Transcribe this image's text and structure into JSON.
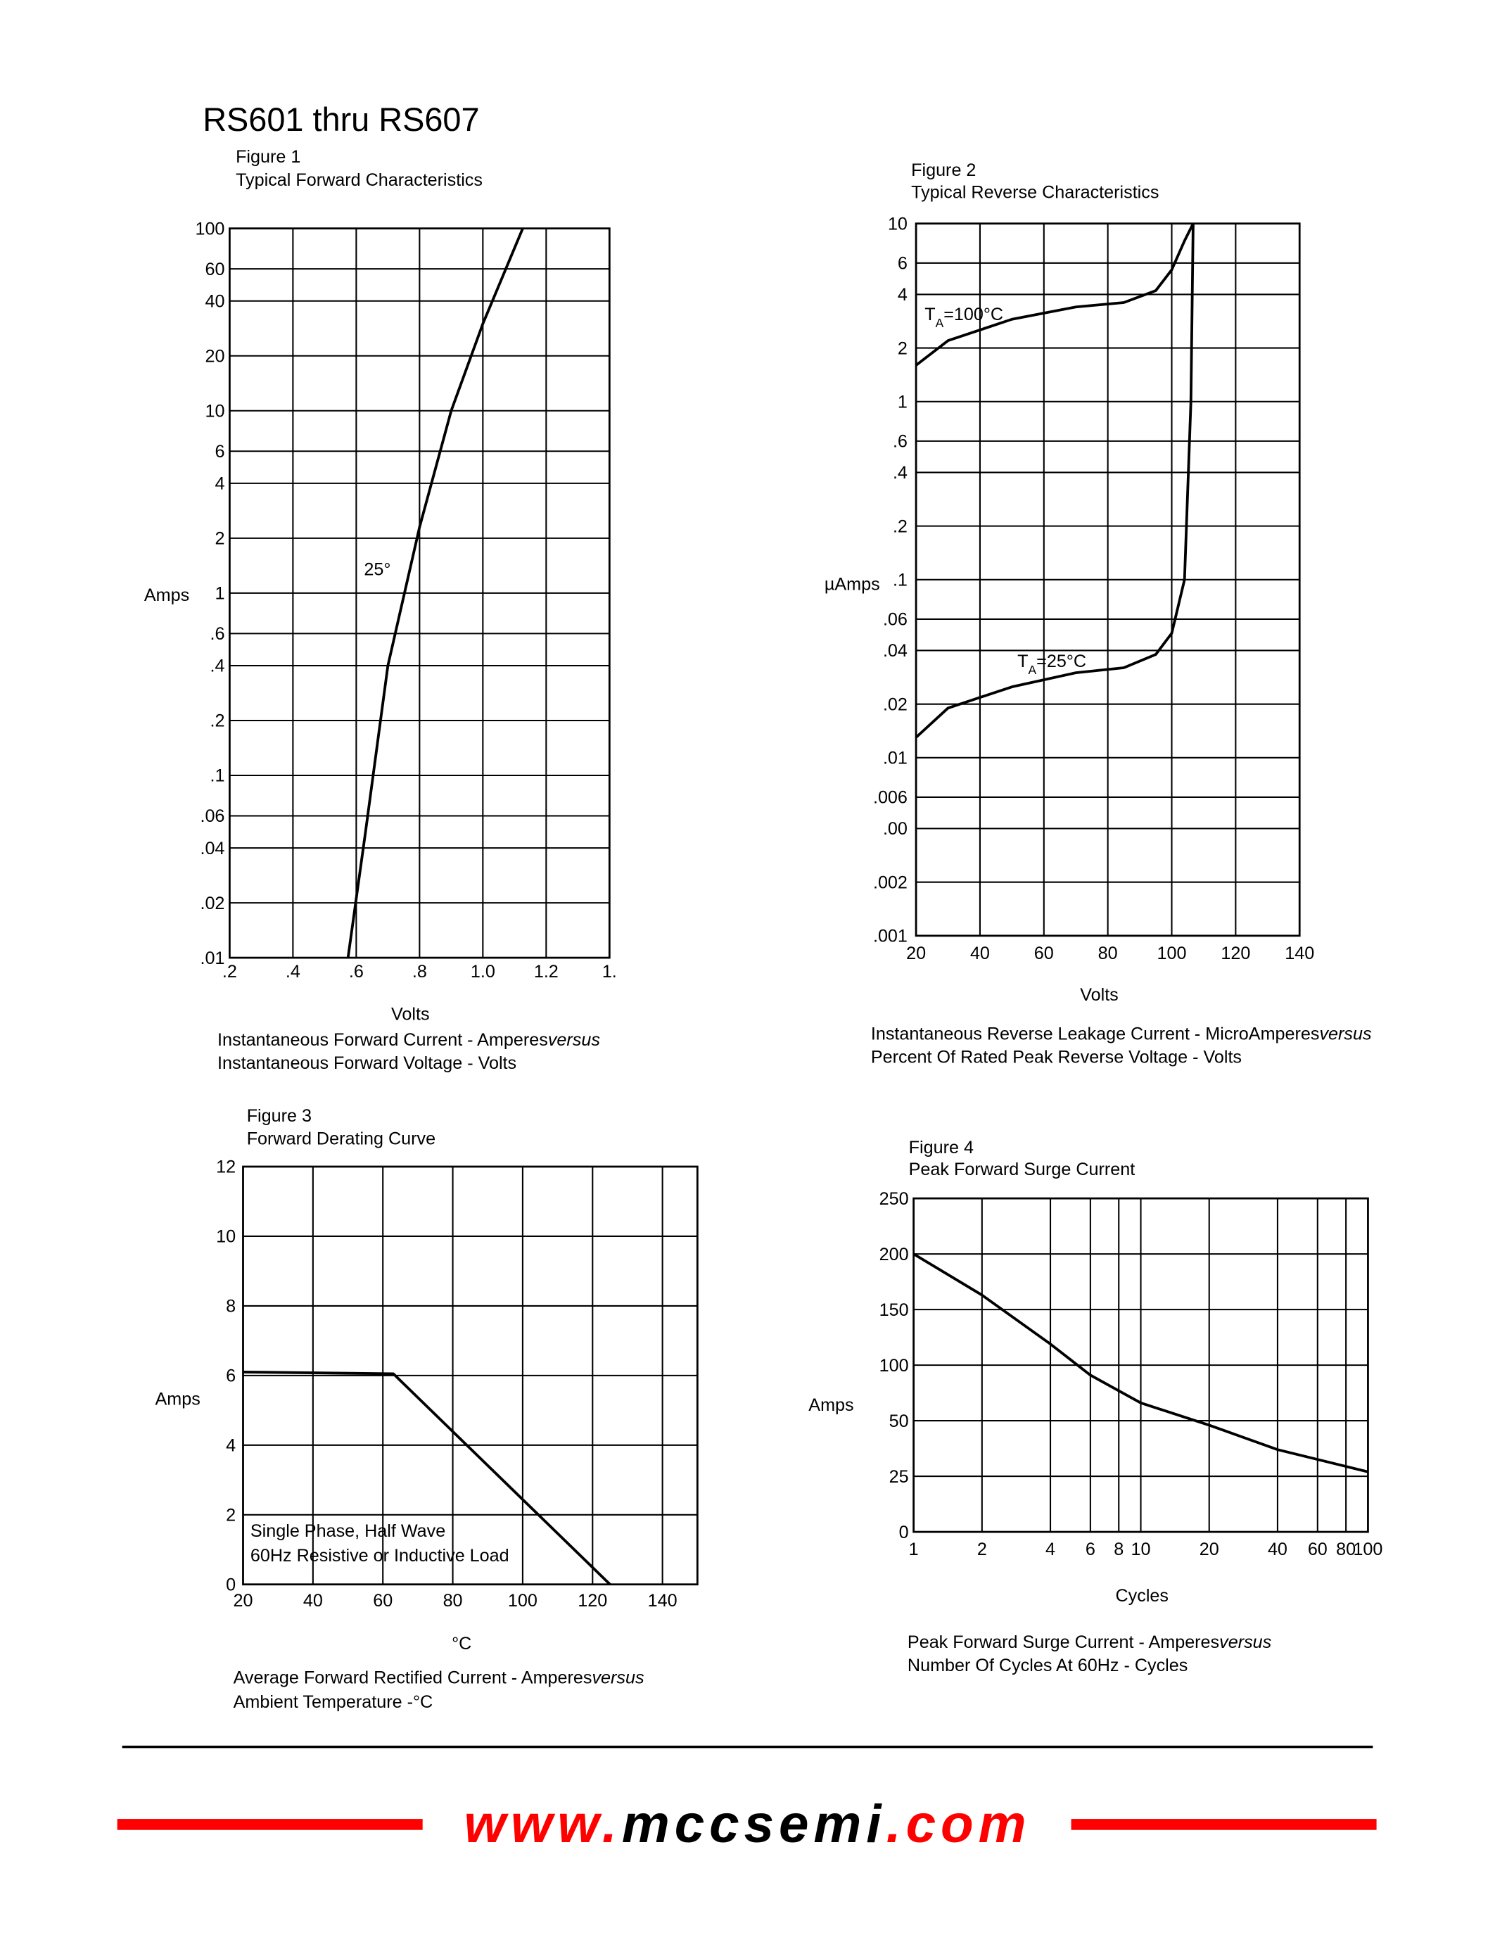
{
  "header": {
    "title": "RS601 thru RS607"
  },
  "chart_data": [
    {
      "type": "line",
      "figure": "Figure 1",
      "title": "Typical Forward Characteristics",
      "xlabel": "Volts",
      "ylabel": "Amps",
      "caption": [
        [
          "Instantaneous Forward Current - Amperes",
          "versus"
        ],
        [
          "Instantaneous Forward Voltage - Volts"
        ]
      ],
      "xlim": [
        0.2,
        1.4
      ],
      "ylim": [
        0.01,
        100
      ],
      "yscale": "log",
      "grid": true,
      "xticks": [
        {
          "value": 0.2,
          "label": ".2"
        },
        {
          "value": 0.4,
          "label": ".4"
        },
        {
          "value": 0.6,
          "label": ".6"
        },
        {
          "value": 0.8,
          "label": ".8"
        },
        {
          "value": 1,
          "label": "1.0"
        },
        1.2,
        {
          "value": 1.4,
          "label": "1."
        }
      ],
      "yticks": [
        100,
        60,
        40,
        20,
        10,
        6,
        4,
        2,
        1,
        {
          "value": 0.6,
          "label": ".6"
        },
        {
          "value": 0.4,
          "label": ".4"
        },
        {
          "value": 0.2,
          "label": ".2"
        },
        {
          "value": 0.1,
          "label": ".1"
        },
        {
          "value": 0.06,
          "label": ".06"
        },
        {
          "value": 0.04,
          "label": ".04"
        },
        {
          "value": 0.02,
          "label": ".02"
        },
        {
          "value": 0.01,
          "label": ".01"
        }
      ],
      "annotations": [
        [
          "25°"
        ]
      ],
      "series": [
        {
          "color": "#000000",
          "x": [
            0.574,
            0.63,
            0.7,
            0.8,
            0.9,
            1.0,
            1.126
          ],
          "values": [
            0.01,
            0.05,
            0.4,
            2.3,
            10,
            30,
            100
          ]
        }
      ]
    },
    {
      "type": "line",
      "figure": "Figure 2",
      "title": "Typical Reverse Characteristics",
      "xlabel": "Volts",
      "ylabel": "µAmps",
      "caption": [
        [
          "Instantaneous Reverse Leakage Current - MicroAmperes",
          "versus"
        ],
        [
          "Percent Of Rated Peak Reverse Voltage - Volts"
        ]
      ],
      "xlim": [
        20,
        140
      ],
      "ylim": [
        0.001,
        10
      ],
      "yscale": "log",
      "grid": true,
      "xticks": [
        20,
        40,
        60,
        80,
        100,
        120,
        140
      ],
      "yticks": [
        10,
        6,
        4,
        2,
        1,
        {
          "value": 0.6,
          "label": ".6"
        },
        {
          "value": 0.4,
          "label": ".4"
        },
        {
          "value": 0.2,
          "label": ".2"
        },
        {
          "value": 0.1,
          "label": ".1"
        },
        {
          "value": 0.06,
          "label": ".06"
        },
        {
          "value": 0.04,
          "label": ".04"
        },
        {
          "value": 0.02,
          "label": ".02"
        },
        {
          "value": 0.01,
          "label": ".01"
        },
        {
          "value": 0.006,
          "label": ".006"
        },
        {
          "value": 0.004,
          "label": ".00"
        },
        {
          "value": 0.002,
          "label": ".002"
        },
        {
          "value": 0.001,
          "label": ".001"
        }
      ],
      "annotations": [
        [
          "T",
          "A",
          "=100°C"
        ],
        [
          "T",
          "A",
          "=25°C"
        ]
      ],
      "series": [
        {
          "color": "#000000",
          "x": [
            20,
            30,
            50,
            70,
            85,
            95,
            100,
            104,
            106.7
          ],
          "values": [
            1.6,
            2.2,
            2.9,
            3.4,
            3.6,
            4.2,
            5.5,
            8,
            10
          ]
        },
        {
          "color": "#000000",
          "x": [
            20,
            30,
            50,
            70,
            85,
            95,
            100,
            104,
            106,
            106.7
          ],
          "values": [
            0.013,
            0.019,
            0.025,
            0.03,
            0.032,
            0.038,
            0.05,
            0.1,
            1,
            10
          ]
        }
      ]
    },
    {
      "type": "line",
      "figure": "Figure 3",
      "title": "Forward Derating Curve",
      "xlabel": "°C",
      "ylabel": "Amps",
      "caption": [
        [
          "Average Forward Rectified Current  -  Amperes",
          "versus"
        ],
        [
          "Ambient Temperature  -°C"
        ]
      ],
      "xlim": [
        20,
        150
      ],
      "ylim": [
        0,
        12
      ],
      "grid": true,
      "xticks": [
        20,
        40,
        60,
        80,
        100,
        120,
        140
      ],
      "yticks": [
        0,
        2,
        4,
        6,
        8,
        10,
        12
      ],
      "annotations": [
        [
          "Single Phase, Half Wave"
        ],
        [
          "60Hz Resistive or Inductive Load"
        ]
      ],
      "series": [
        {
          "color": "#000000",
          "x": [
            20,
            63,
            125
          ],
          "values": [
            6.1,
            6.05,
            0
          ]
        }
      ]
    },
    {
      "type": "line",
      "figure": "Figure 4",
      "title": "Peak Forward Surge Current",
      "xlabel": "Cycles",
      "ylabel": "Amps",
      "caption": [
        [
          "Peak Forward Surge Current - Amperes",
          "versus"
        ],
        [
          "Number Of Cycles At 60Hz - Cycles"
        ]
      ],
      "xlim": [
        1,
        100
      ],
      "xscale": "log",
      "ylim": [
        0,
        250
      ],
      "yscale": "piecewise",
      "grid": true,
      "xticks": [
        1,
        2,
        4,
        6,
        8,
        10,
        20,
        40,
        60,
        80,
        100
      ],
      "yticks": [
        0,
        25,
        50,
        100,
        150,
        200,
        250
      ],
      "annotations": [],
      "series": [
        {
          "color": "#000000",
          "x": [
            1,
            2,
            4,
            6,
            10,
            20,
            40,
            100
          ],
          "values": [
            200,
            163,
            119,
            91,
            66,
            48,
            37,
            27
          ]
        }
      ]
    }
  ],
  "footer": {
    "url": [
      "www.",
      "mccsemi",
      ".com"
    ]
  }
}
